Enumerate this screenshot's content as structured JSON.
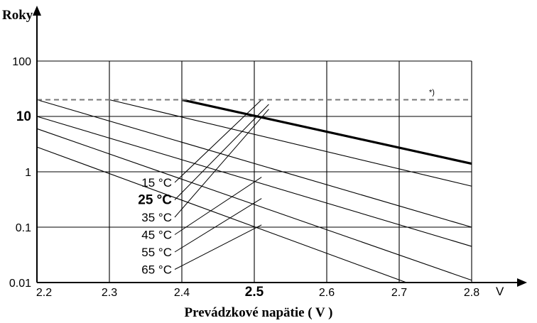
{
  "chart_data": {
    "type": "line",
    "y_axis_label": "Roky",
    "x_axis_label": "Prevádzkové napätie ( V )",
    "x_unit_label": "V",
    "y_scale": "log",
    "xlim": [
      2.2,
      2.8
    ],
    "ylim": [
      0.01,
      100
    ],
    "grid": true,
    "x_ticks": [
      {
        "value": 2.2,
        "label": "2.2",
        "bold": false
      },
      {
        "value": 2.3,
        "label": "2.3",
        "bold": false
      },
      {
        "value": 2.4,
        "label": "2.4",
        "bold": false
      },
      {
        "value": 2.5,
        "label": "2.5",
        "bold": true
      },
      {
        "value": 2.6,
        "label": "2.6",
        "bold": false
      },
      {
        "value": 2.7,
        "label": "2.7",
        "bold": false
      },
      {
        "value": 2.8,
        "label": "2.8",
        "bold": false
      }
    ],
    "y_ticks": [
      {
        "value": 100,
        "label": "100",
        "bold": false
      },
      {
        "value": 10,
        "label": "10",
        "bold": true
      },
      {
        "value": 1,
        "label": "1",
        "bold": false
      },
      {
        "value": 0.1,
        "label": "0.1",
        "bold": false
      },
      {
        "value": 0.01,
        "label": "0.01",
        "bold": false
      }
    ],
    "reference_line": {
      "y": 20,
      "label": "*)",
      "style": "dashed"
    },
    "series": [
      {
        "name": "15 °C",
        "bold": false,
        "x": [
          2.3,
          2.8
        ],
        "y": [
          20,
          0.55
        ],
        "label_end": [
          2.51,
          20
        ]
      },
      {
        "name": "25 °C",
        "bold": true,
        "x": [
          2.4,
          2.8
        ],
        "y": [
          20,
          1.4
        ],
        "label_end": [
          2.52,
          16.5
        ]
      },
      {
        "name": "35 °C",
        "bold": false,
        "x": [
          2.2,
          2.8
        ],
        "y": [
          20,
          0.1
        ],
        "label_end": [
          2.52,
          13.5
        ]
      },
      {
        "name": "45 °C",
        "bold": false,
        "x": [
          2.2,
          2.8
        ],
        "y": [
          10,
          0.045
        ],
        "label_end": [
          2.51,
          0.8
        ]
      },
      {
        "name": "55 °C",
        "bold": false,
        "x": [
          2.2,
          2.8
        ],
        "y": [
          6,
          0.011
        ],
        "label_end": [
          2.51,
          0.33
        ]
      },
      {
        "name": "65 °C",
        "bold": false,
        "x": [
          2.2,
          2.71
        ],
        "y": [
          2.8,
          0.01
        ],
        "label_end": [
          2.51,
          0.11
        ]
      }
    ]
  }
}
